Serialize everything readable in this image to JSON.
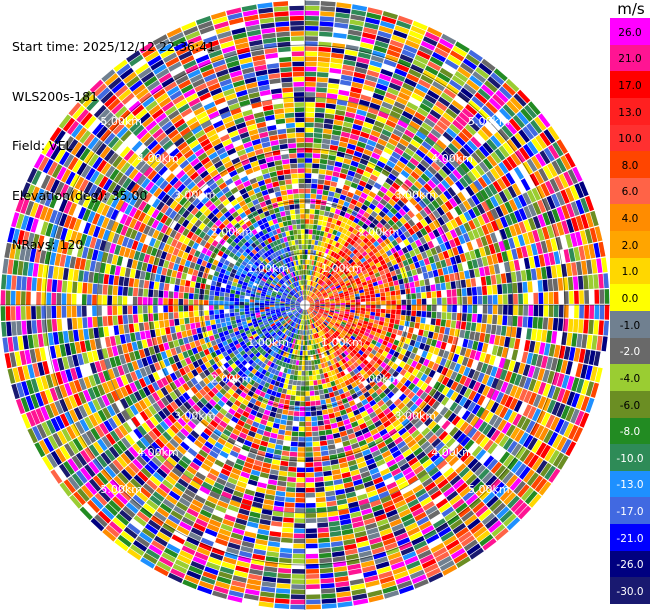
{
  "header": {
    "start_time": "Start time: 2025/12/12 22:36:41",
    "instrument": "WLS200s-181",
    "field": "Field: VEL",
    "elevation": "Elevation(deg): 35.00",
    "nrays": "NRays: 120"
  },
  "colorbar": {
    "unit": "m/s",
    "ticks": [
      "26.0",
      "21.0",
      "17.0",
      "13.0",
      "10.0",
      "8.0",
      "6.0",
      "4.0",
      "2.0",
      "1.0",
      "0.0",
      "-1.0",
      "-2.0",
      "-4.0",
      "-6.0",
      "-8.0",
      "-10.0",
      "-13.0",
      "-17.0",
      "-21.0",
      "-26.0",
      "-30.0"
    ],
    "colors": [
      "#ff00ff",
      "#ff1493",
      "#ff0000",
      "#ff2020",
      "#ff3030",
      "#ff4500",
      "#ff6347",
      "#ff8c00",
      "#ffa500",
      "#ffd700",
      "#ffff00",
      "#708090",
      "#696969",
      "#9acd32",
      "#6b8e23",
      "#228b22",
      "#2e8b57",
      "#1e90ff",
      "#4169e1",
      "#0000ff",
      "#000080",
      "#191970"
    ],
    "label_colors": [
      "#000000",
      "#000000",
      "#000000",
      "#000000",
      "#000000",
      "#000000",
      "#000000",
      "#000000",
      "#000000",
      "#000000",
      "#000000",
      "#000000",
      "#ffffff",
      "#000000",
      "#000000",
      "#ffffff",
      "#ffffff",
      "#ffffff",
      "#ffffff",
      "#ffffff",
      "#ffffff",
      "#ffffff"
    ]
  },
  "range_labels": [
    "1.00km",
    "2.00km",
    "3.00km",
    "4.00km",
    "5.00km"
  ],
  "map": {
    "nrays": 120,
    "ngates": 60,
    "max_range_km": 5.85,
    "near_field_velocity": {
      "east_sector": "positive (red / orange / yellow)",
      "west_sector": "negative (blue)",
      "far_field": "noise (mixed colors)"
    }
  }
}
